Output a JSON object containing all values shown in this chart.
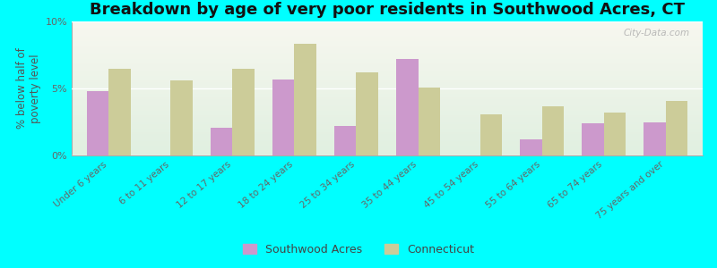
{
  "title": "Breakdown by age of very poor residents in Southwood Acres, CT",
  "ylabel": "% below half of\npoverty level",
  "categories": [
    "Under 6 years",
    "6 to 11 years",
    "12 to 17 years",
    "18 to 24 years",
    "25 to 34 years",
    "35 to 44 years",
    "45 to 54 years",
    "55 to 64 years",
    "65 to 74 years",
    "75 years and over"
  ],
  "southwood_values": [
    4.8,
    0.0,
    2.1,
    5.7,
    2.2,
    7.2,
    0.0,
    1.2,
    2.4,
    2.5
  ],
  "connecticut_values": [
    6.5,
    5.6,
    6.5,
    8.3,
    6.2,
    5.1,
    3.1,
    3.7,
    3.2,
    4.1
  ],
  "southwood_color": "#cc99cc",
  "connecticut_color": "#cccc99",
  "background_color": "#00ffff",
  "plot_bg_color": "#f0f5e8",
  "ylim": [
    0,
    10
  ],
  "yticks": [
    0,
    5,
    10
  ],
  "ytick_labels": [
    "0%",
    "5%",
    "10%"
  ],
  "bar_width": 0.35,
  "title_fontsize": 13,
  "legend_labels": [
    "Southwood Acres",
    "Connecticut"
  ],
  "watermark": "City-Data.com"
}
